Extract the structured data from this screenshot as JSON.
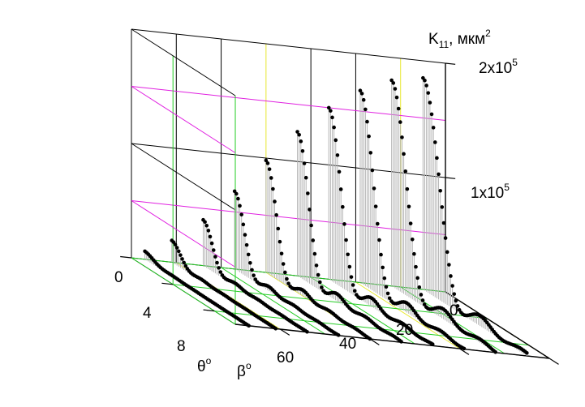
{
  "chart_data": {
    "type": "3d-waterfall",
    "z_axis": {
      "label_main": "K",
      "label_sub": "11",
      "label_unit": ", мкм",
      "label_unit_sup": "2",
      "range": [
        0,
        200000
      ],
      "ticks": [
        {
          "value": 100000,
          "mantissa": "1x10",
          "exp": "5"
        },
        {
          "value": 200000,
          "mantissa": "2x10",
          "exp": "5"
        }
      ]
    },
    "theta_axis": {
      "label": "θ",
      "label_sup": "o",
      "range": [
        0,
        10
      ],
      "ticks": [
        {
          "value": 0,
          "text": "0"
        },
        {
          "value": 4,
          "text": "4"
        },
        {
          "value": 8,
          "text": "8"
        }
      ]
    },
    "beta_axis": {
      "label": "β",
      "label_sup": "o",
      "range": [
        0,
        70
      ],
      "ticks": [
        {
          "value": 0,
          "text": "0"
        },
        {
          "value": 20,
          "text": "20"
        },
        {
          "value": 40,
          "text": "40"
        },
        {
          "value": 60,
          "text": "60"
        }
      ]
    },
    "grid": true,
    "colors": {
      "curve": "#000000",
      "fill_lines": "#b4b4b4",
      "grid_primary": "#000000",
      "grid_magenta": "#e020e0",
      "grid_green": "#22cc22",
      "grid_yellow": "#e8e830"
    },
    "series": [
      {
        "beta": 5,
        "peak": 183000
      },
      {
        "beta": 12,
        "peak": 178000
      },
      {
        "beta": 19,
        "peak": 166000
      },
      {
        "beta": 26,
        "peak": 148000
      },
      {
        "beta": 33,
        "peak": 124000
      },
      {
        "beta": 40,
        "peak": 96000
      },
      {
        "beta": 47,
        "peak": 66000
      },
      {
        "beta": 54,
        "peak": 38000
      },
      {
        "beta": 61,
        "peak": 17000
      },
      {
        "beta": 67,
        "peak": 5000
      }
    ]
  }
}
